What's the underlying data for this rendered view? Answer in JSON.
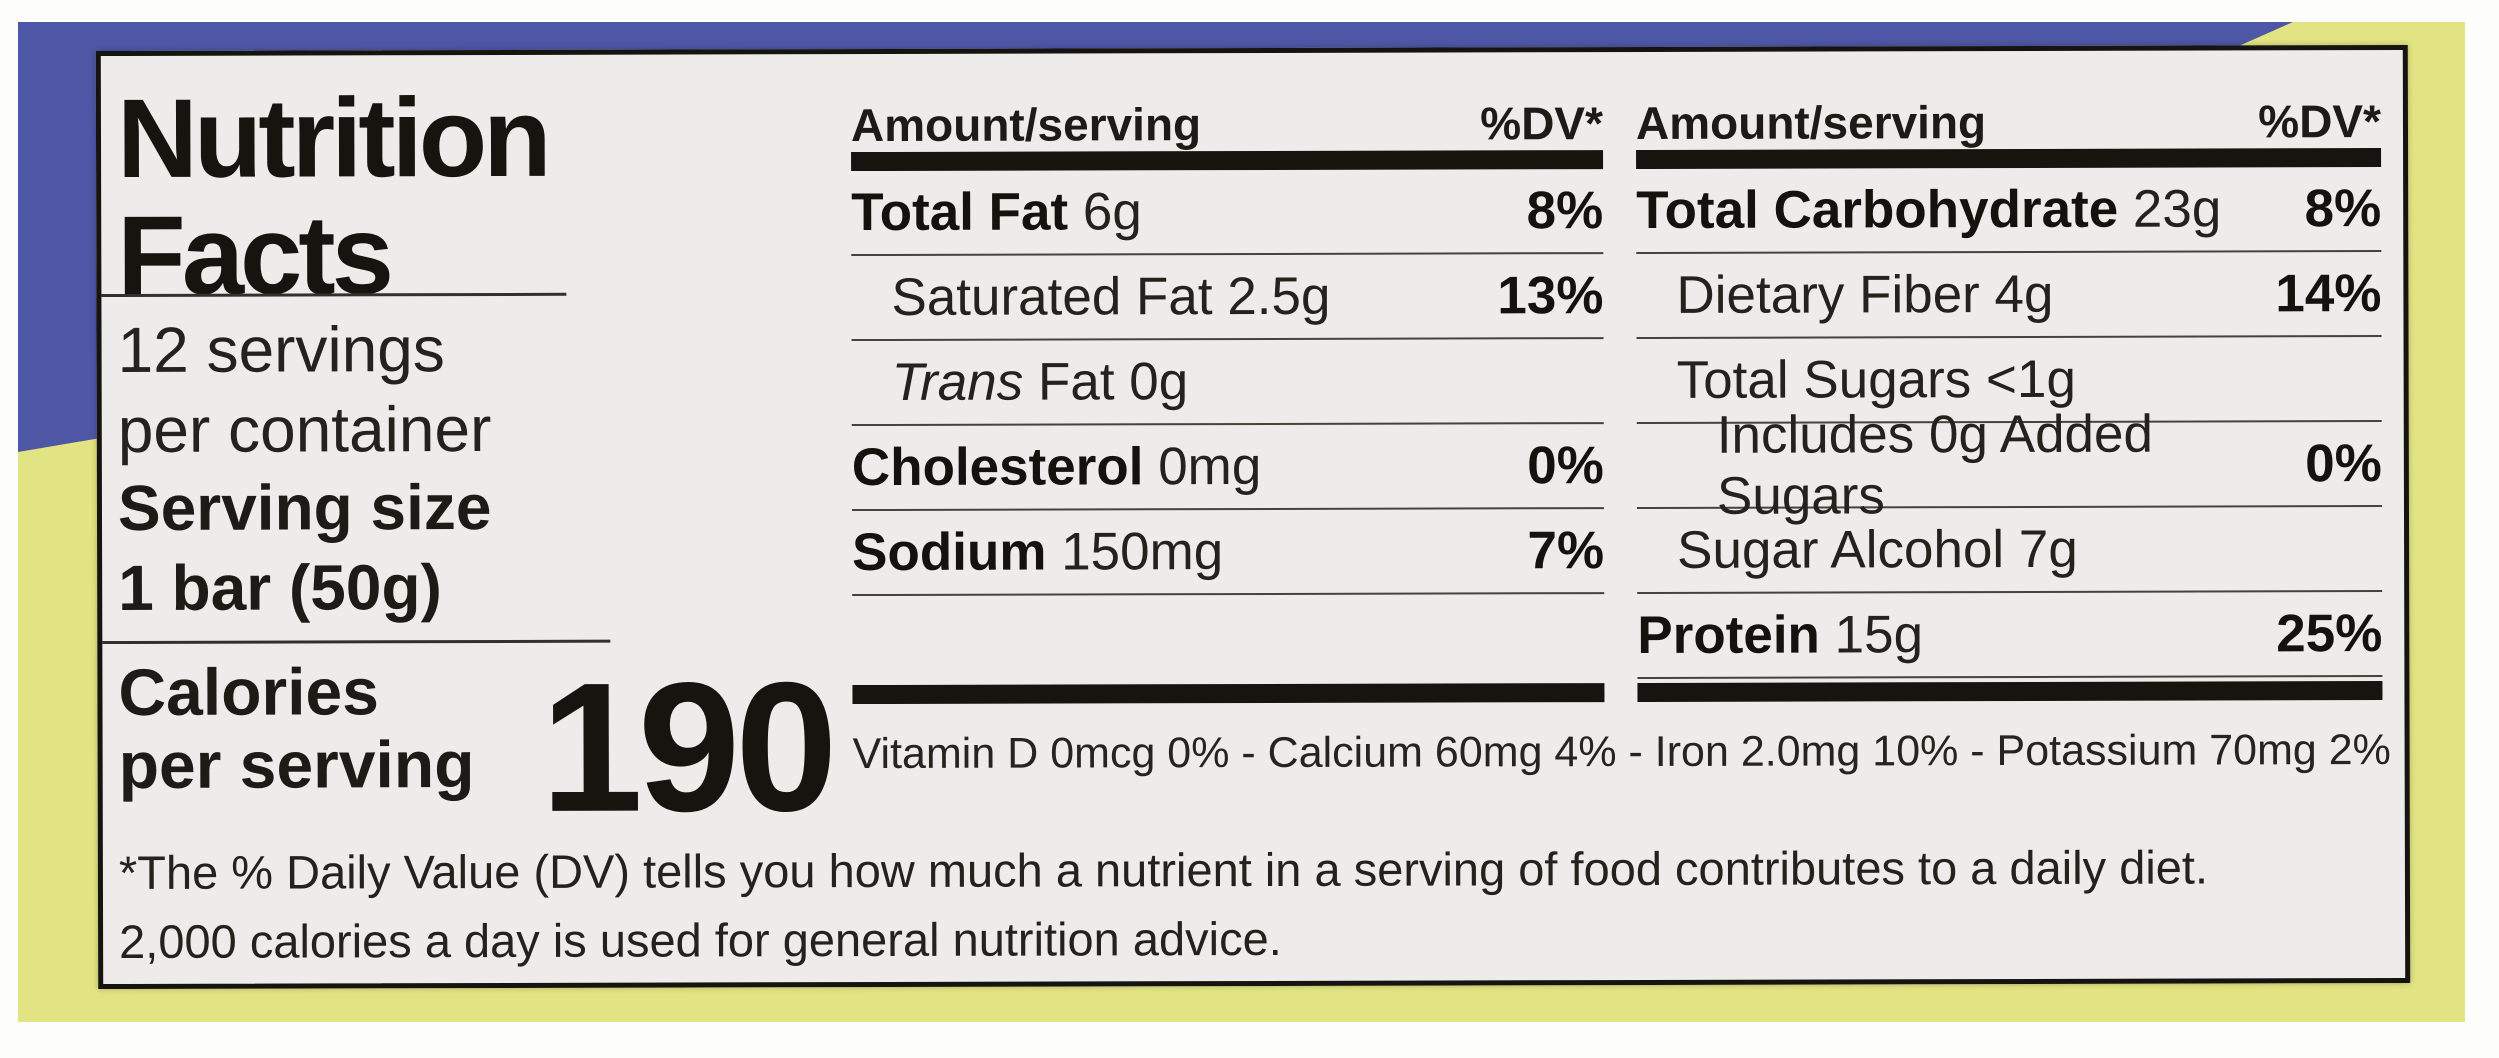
{
  "colors": {
    "package_blue": "#4d57a5",
    "package_yellow": "#e2e382",
    "label_background": "#edecea",
    "ink": "#16140e"
  },
  "label": {
    "title_lines": [
      "Nutrition",
      "Facts"
    ],
    "servings_lines": [
      "12 servings",
      "per container"
    ],
    "serving_size_lines": [
      "Serving size",
      "1 bar (50g)"
    ],
    "calories_lines": [
      "Calories",
      "per serving"
    ],
    "calories_value": "190",
    "column_header": {
      "amount": "Amount/serving",
      "dv": "%DV*"
    },
    "nutrient_columns": [
      {
        "rows": [
          {
            "bold": true,
            "name": "Total Fat",
            "amount": "6g",
            "dv": "8%",
            "indent": 0
          },
          {
            "bold": false,
            "name": "Saturated Fat",
            "amount": "2.5g",
            "dv": "13%",
            "indent": 1
          },
          {
            "bold": false,
            "italic_prefix": "Trans",
            "name": "Fat",
            "amount": "0g",
            "dv": "",
            "indent": 1
          },
          {
            "bold": true,
            "name": "Cholesterol",
            "amount": "0mg",
            "dv": "0%",
            "indent": 0
          },
          {
            "bold": true,
            "name": "Sodium",
            "amount": "150mg",
            "dv": "7%",
            "indent": 0
          }
        ]
      },
      {
        "rows": [
          {
            "bold": true,
            "name": "Total Carbohydrate",
            "amount": "23g",
            "dv": "8%",
            "indent": 0
          },
          {
            "bold": false,
            "name": "Dietary Fiber",
            "amount": "4g",
            "dv": "14%",
            "indent": 1
          },
          {
            "bold": false,
            "name": "Total Sugars",
            "amount": "<1g",
            "dv": "",
            "indent": 1
          },
          {
            "bold": false,
            "name": "Includes 0g Added Sugars",
            "amount": "",
            "dv": "0%",
            "indent": 2
          },
          {
            "bold": false,
            "name": "Sugar Alcohol",
            "amount": "7g",
            "dv": "",
            "indent": 1
          },
          {
            "bold": true,
            "name": "Protein",
            "amount": "15g",
            "dv": "25%",
            "indent": 0
          }
        ]
      }
    ],
    "vitamins_line": "Vitamin D 0mcg 0% - Calcium 60mg 4% - Iron 2.0mg 10% - Potassium 70mg 2%",
    "footnote_lines": [
      "*The % Daily Value (DV) tells you how much a nutrient in a serving of food contributes to a daily diet.",
      "2,000 calories a day is used for general nutrition advice."
    ]
  }
}
